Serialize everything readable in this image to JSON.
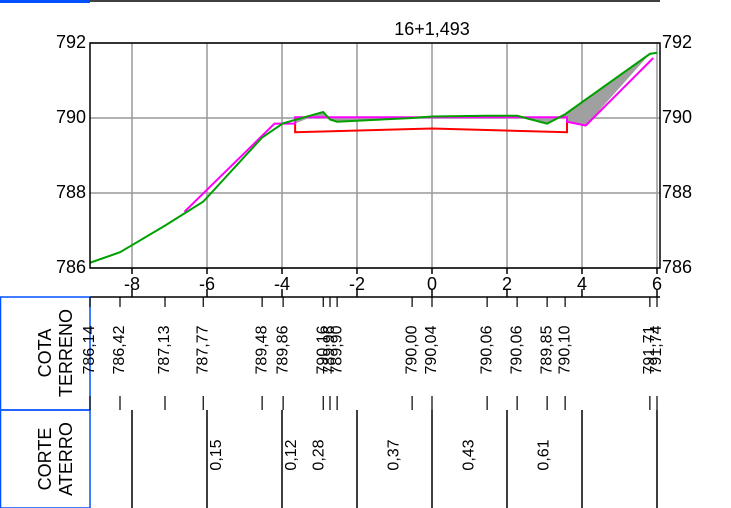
{
  "chart_data": {
    "type": "cross-section",
    "title": "16+1,493",
    "xlim": [
      -9.12,
      6.08
    ],
    "ylim": [
      786,
      792
    ],
    "xticks": [
      -8,
      -6,
      -4,
      -2,
      0,
      2,
      4,
      6
    ],
    "yticks": [
      786,
      788,
      790,
      792
    ],
    "grid": true,
    "area_color": "#a0a0a0",
    "terrain": {
      "color": "#00a000",
      "x": [
        -9.12,
        -8.32,
        -7.12,
        -6.1,
        -4.53,
        -3.97,
        -2.9,
        -2.72,
        -2.53,
        -0.53,
        0,
        1.47,
        2.27,
        3.07,
        3.55,
        5.81,
        6.0
      ],
      "values": [
        786.14,
        786.42,
        787.13,
        787.77,
        789.48,
        789.86,
        790.16,
        789.96,
        789.9,
        790.0,
        790.04,
        790.06,
        790.06,
        789.85,
        790.1,
        791.71,
        791.74
      ],
      "value_labels": [
        "786,14",
        "786,42",
        "787,13",
        "787,77",
        "789,48",
        "789,86",
        "790,16",
        "789,96",
        "789,90",
        "790,00",
        "790,04",
        "790,06",
        "790,06",
        "789,85",
        "790,10",
        "791,71",
        "791,74"
      ]
    },
    "design": {
      "color": "#ff00ff",
      "x": [
        -6.6,
        -4.2,
        -3.65,
        -3.65,
        3.6,
        3.6,
        4.1,
        5.9
      ],
      "values": [
        787.5,
        789.85,
        789.85,
        790.02,
        790.02,
        789.9,
        789.8,
        791.6
      ]
    },
    "pavement": {
      "color": "#ff0000",
      "x": [
        -3.65,
        -3.65,
        0,
        3.6,
        3.6
      ],
      "values": [
        789.9,
        789.62,
        789.72,
        789.62,
        789.9
      ]
    },
    "table": {
      "terrain_label": [
        "COTA",
        "TERRENO"
      ],
      "cut_fill_label": [
        "CORTE",
        "ATERRO"
      ],
      "cut_color": "#ff0000",
      "fill_color": "#0050ff",
      "corte": [
        null,
        null,
        0.28,
        0.37,
        0.43,
        0.61,
        null
      ],
      "corte_labels": [
        null,
        null,
        "0,28",
        "0,37",
        "0,43",
        "0,61",
        null
      ],
      "aterro": [
        null,
        0.15,
        0.12,
        null,
        null,
        null,
        null
      ],
      "aterro_labels": [
        null,
        "0,15",
        "0,12",
        null,
        null,
        null,
        null
      ]
    }
  }
}
